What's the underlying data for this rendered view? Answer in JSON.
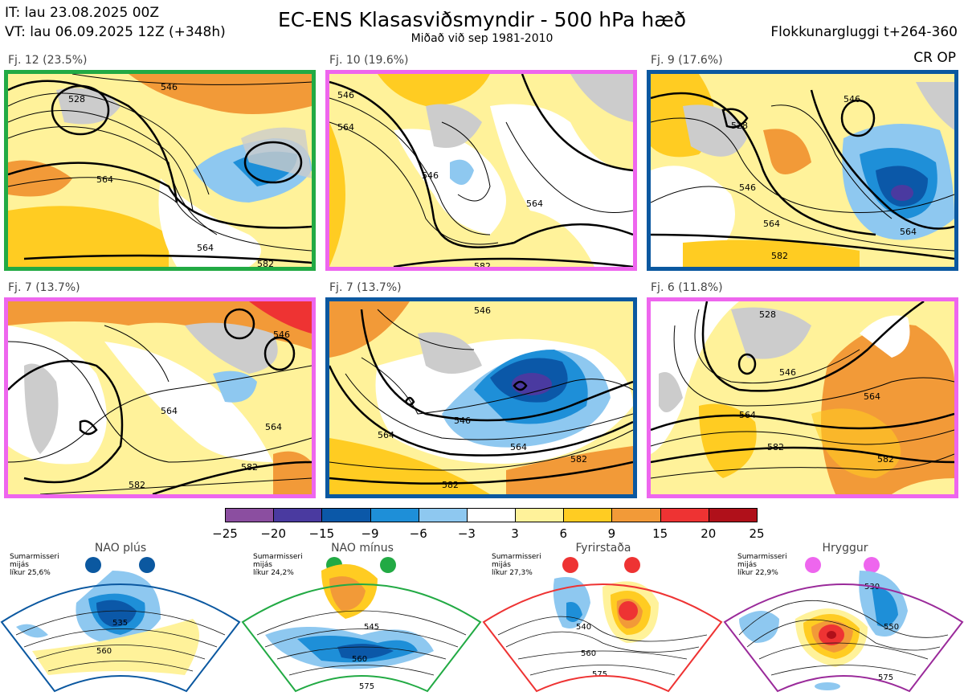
{
  "header": {
    "it": "IT: lau 23.08.2025 00Z",
    "vt": "VT: lau 06.09.2025 12Z  (+348h)",
    "title": "EC-ENS Klasasviðsmyndir - 500 hPa hæð",
    "subtitle": "Miðað við sep 1981-2010",
    "window": "Flokkunargluggi t+264-360"
  },
  "cr_op": "CR OP",
  "panels": [
    {
      "label": "Fj. 12 (23.5%)",
      "border": "#22aa44",
      "contours": [
        "528",
        "546",
        "564",
        "564",
        "582"
      ]
    },
    {
      "label": "Fj. 10 (19.6%)",
      "border": "#ee66ee",
      "contours": [
        "546",
        "564",
        "546",
        "564",
        "582"
      ]
    },
    {
      "label": "Fj. 9 (17.6%)",
      "border": "#0b58a0",
      "contours": [
        "528",
        "546",
        "546",
        "564",
        "564",
        "582"
      ]
    },
    {
      "label": "Fj. 7 (13.7%)",
      "border": "#ee66ee",
      "contours": [
        "546",
        "564",
        "564",
        "582",
        "582"
      ]
    },
    {
      "label": "Fj. 7 (13.7%)",
      "border": "#0b58a0",
      "contours": [
        "546",
        "546",
        "564",
        "564",
        "582",
        "582"
      ]
    },
    {
      "label": "Fj. 6 (11.8%)",
      "border": "#ee66ee",
      "contours": [
        "528",
        "546",
        "564",
        "564",
        "582",
        "582"
      ]
    }
  ],
  "colorbar": {
    "colors": [
      "#8b4ea0",
      "#4a3aa0",
      "#0b58a8",
      "#1e8fd8",
      "#8ec8f0",
      "#ffffff",
      "#fff29a",
      "#ffcc22",
      "#f29a38",
      "#ee3333",
      "#b0101a"
    ],
    "ticks": [
      "−25",
      "−20",
      "−15",
      "−9",
      "−6",
      "−3",
      "3",
      "6",
      "9",
      "15",
      "20",
      "25"
    ]
  },
  "regimes": [
    {
      "name": "NAO plús",
      "season": "Sumarmisseri",
      "mean": "mijás",
      "prob": "líkur 25,6%",
      "color": "#0b58a0",
      "contours": [
        "535",
        "560"
      ]
    },
    {
      "name": "NAO mínus",
      "season": "Sumarmisseri",
      "mean": "mijás",
      "prob": "líkur 24,2%",
      "color": "#22aa44",
      "contours": [
        "545",
        "560",
        "575"
      ]
    },
    {
      "name": "Fyrirstaða",
      "season": "Sumarmisseri",
      "mean": "mijás",
      "prob": "líkur 27,3%",
      "color": "#ee3333",
      "contours": [
        "540",
        "560",
        "575"
      ]
    },
    {
      "name": "Hryggur",
      "season": "Sumarmisseri",
      "mean": "mijás",
      "prob": "líkur 22,9%",
      "color": "#ee66ee",
      "contours": [
        "530",
        "550",
        "575"
      ]
    }
  ]
}
